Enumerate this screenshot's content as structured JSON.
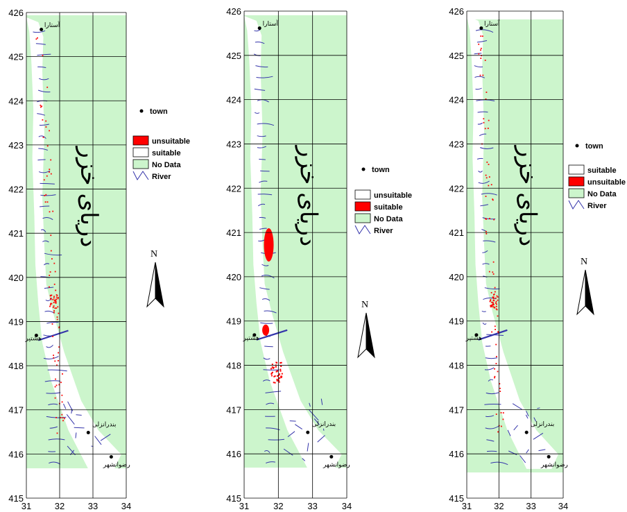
{
  "map_panels": [
    {
      "name": "panel-left",
      "y_ticks": [
        "426",
        "425",
        "424",
        "423",
        "422",
        "421",
        "420",
        "419",
        "418",
        "417",
        "416",
        "415"
      ],
      "x_ticks": [
        "31",
        "32",
        "33",
        "34"
      ],
      "legend": {
        "town_label": "town",
        "entries": [
          {
            "label": "unsuitable",
            "color": "#ff0000"
          },
          {
            "label": "suitable",
            "color": "#ffffff"
          },
          {
            "label": "No Data",
            "color": "#ccf5cc"
          },
          {
            "label": "River",
            "color": "#3333aa"
          }
        ]
      },
      "north_label": "N",
      "sea_label": "دریای خزر",
      "towns": [
        "آستارا",
        "هشتپر",
        "بندرانزلی",
        "رضوانشهر"
      ],
      "highlight_level": "sparse"
    },
    {
      "name": "panel-middle",
      "y_ticks": [
        "426",
        "425",
        "424",
        "423",
        "422",
        "421",
        "420",
        "419",
        "418",
        "417",
        "416",
        "415"
      ],
      "x_ticks": [
        "31",
        "32",
        "33",
        "34"
      ],
      "legend": {
        "town_label": "town",
        "entries": [
          {
            "label": "unsuitable",
            "color": "#ffffff"
          },
          {
            "label": "suitable",
            "color": "#ff0000"
          },
          {
            "label": "No Data",
            "color": "#ccf5cc"
          },
          {
            "label": "River",
            "color": "#3333aa"
          }
        ]
      },
      "north_label": "N",
      "sea_label": "دریای خزر",
      "towns": [
        "آستارا",
        "هشتپر",
        "بندرانزلی",
        "رضوانشهر"
      ],
      "highlight_level": "clustered"
    },
    {
      "name": "panel-right",
      "y_ticks": [
        "426",
        "425",
        "424",
        "423",
        "422",
        "421",
        "420",
        "419",
        "418",
        "417",
        "416",
        "415"
      ],
      "x_ticks": [
        "31",
        "32",
        "33",
        "34"
      ],
      "legend": {
        "town_label": "town",
        "entries": [
          {
            "label": "suitable",
            "color": "#ffffff"
          },
          {
            "label": "unsuitable",
            "color": "#ff0000"
          },
          {
            "label": "No Data",
            "color": "#ccf5cc"
          },
          {
            "label": "River",
            "color": "#3333aa"
          }
        ]
      },
      "north_label": "N",
      "sea_label": "دریای خزر",
      "towns": [
        "آستارا",
        "هشتپر",
        "بندرانزلی",
        "رضوانشهر"
      ],
      "highlight_level": "sparse"
    }
  ],
  "colors": {
    "no_data": "#ccf5cc",
    "grid": "#000000",
    "river": "#3333aa",
    "highlight": "#ff0000"
  }
}
